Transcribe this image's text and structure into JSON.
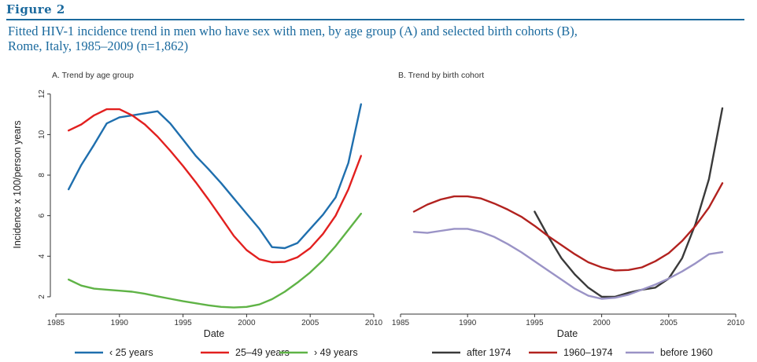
{
  "figure_label": "Figure 2",
  "caption_line1": "Fitted HIV-1 incidence trend in men who have sex with men, by age group (A) and selected birth cohorts (B),",
  "caption_line2": "Rome, Italy, 1985–2009 (n=1,862)",
  "y_axis_label": "Incidence x 100/person years",
  "chart_data": [
    {
      "type": "line",
      "title": "A.  Trend by age group",
      "xlabel": "Date",
      "xlim": [
        1985,
        2010
      ],
      "ylim": [
        1.3,
        12.3
      ],
      "x_ticks": [
        1985,
        1990,
        1995,
        2000,
        2005,
        2010
      ],
      "y_ticks": [
        2,
        4,
        6,
        8,
        10,
        12
      ],
      "series": [
        {
          "name": "‹ 25 years",
          "color": "#1f6fae",
          "x": [
            1986,
            1987,
            1988,
            1989,
            1990,
            1991,
            1992,
            1993,
            1994,
            1995,
            1996,
            1997,
            1998,
            1999,
            2000,
            2001,
            2002,
            2003,
            2004,
            2005,
            2006,
            2007,
            2008,
            2009
          ],
          "y": [
            7.3,
            8.5,
            9.5,
            10.55,
            10.85,
            10.95,
            11.05,
            11.15,
            10.55,
            9.75,
            8.95,
            8.3,
            7.6,
            6.85,
            6.1,
            5.35,
            4.45,
            4.4,
            4.65,
            5.35,
            6.05,
            6.9,
            8.6,
            11.5
          ]
        },
        {
          "name": "25–49 years",
          "color": "#e2201f",
          "x": [
            1986,
            1987,
            1988,
            1989,
            1990,
            1991,
            1992,
            1993,
            1994,
            1995,
            1996,
            1997,
            1998,
            1999,
            2000,
            2001,
            2002,
            2003,
            2004,
            2005,
            2006,
            2007,
            2008,
            2009
          ],
          "y": [
            10.2,
            10.5,
            10.95,
            11.25,
            11.25,
            10.95,
            10.5,
            9.9,
            9.2,
            8.45,
            7.65,
            6.8,
            5.9,
            5.0,
            4.3,
            3.85,
            3.7,
            3.72,
            3.95,
            4.4,
            5.1,
            6.0,
            7.3,
            8.95
          ]
        },
        {
          "name": "› 49 years",
          "color": "#5fb346",
          "x": [
            1986,
            1987,
            1988,
            1989,
            1990,
            1991,
            1992,
            1993,
            1994,
            1995,
            1996,
            1997,
            1998,
            1999,
            2000,
            2001,
            2002,
            2003,
            2004,
            2005,
            2006,
            2007,
            2008,
            2009
          ],
          "y": [
            2.85,
            2.55,
            2.4,
            2.35,
            2.3,
            2.25,
            2.15,
            2.02,
            1.9,
            1.78,
            1.68,
            1.58,
            1.5,
            1.47,
            1.5,
            1.62,
            1.88,
            2.25,
            2.7,
            3.2,
            3.8,
            4.5,
            5.3,
            6.1
          ]
        }
      ],
      "legend_position": "bottom"
    },
    {
      "type": "line",
      "title": "B.  Trend by birth cohort",
      "xlabel": "Date",
      "xlim": [
        1985,
        2010
      ],
      "ylim": [
        1.3,
        12.3
      ],
      "x_ticks": [
        1985,
        1990,
        1995,
        2000,
        2005,
        2010
      ],
      "series": [
        {
          "name": "after 1974",
          "color": "#3a3a3a",
          "x": [
            1995,
            1996,
            1997,
            1998,
            1999,
            2000,
            2001,
            2002,
            2003,
            2004,
            2005,
            2006,
            2007,
            2008,
            2009
          ],
          "y": [
            6.2,
            5.0,
            3.9,
            3.1,
            2.45,
            2.0,
            2.0,
            2.2,
            2.35,
            2.45,
            2.9,
            3.9,
            5.6,
            7.8,
            11.3
          ]
        },
        {
          "name": "1960–1974",
          "color": "#b2221f",
          "x": [
            1986,
            1987,
            1988,
            1989,
            1990,
            1991,
            1992,
            1993,
            1994,
            1995,
            1996,
            1997,
            1998,
            1999,
            2000,
            2001,
            2002,
            2003,
            2004,
            2005,
            2006,
            2007,
            2008,
            2009
          ],
          "y": [
            6.2,
            6.55,
            6.8,
            6.95,
            6.95,
            6.85,
            6.6,
            6.3,
            5.95,
            5.5,
            5.0,
            4.55,
            4.1,
            3.7,
            3.45,
            3.3,
            3.32,
            3.45,
            3.75,
            4.15,
            4.75,
            5.5,
            6.4,
            7.6
          ]
        },
        {
          "name": "before 1960",
          "color": "#9a93c6",
          "x": [
            1986,
            1987,
            1988,
            1989,
            1990,
            1991,
            1992,
            1993,
            1994,
            1995,
            1996,
            1997,
            1998,
            1999,
            2000,
            2001,
            2002,
            2003,
            2004,
            2005,
            2006,
            2007,
            2008,
            2009
          ],
          "y": [
            5.2,
            5.15,
            5.25,
            5.35,
            5.35,
            5.2,
            4.95,
            4.6,
            4.2,
            3.75,
            3.3,
            2.85,
            2.4,
            2.05,
            1.9,
            1.95,
            2.1,
            2.35,
            2.6,
            2.9,
            3.25,
            3.65,
            4.1,
            4.2
          ]
        }
      ],
      "legend_position": "bottom"
    }
  ]
}
